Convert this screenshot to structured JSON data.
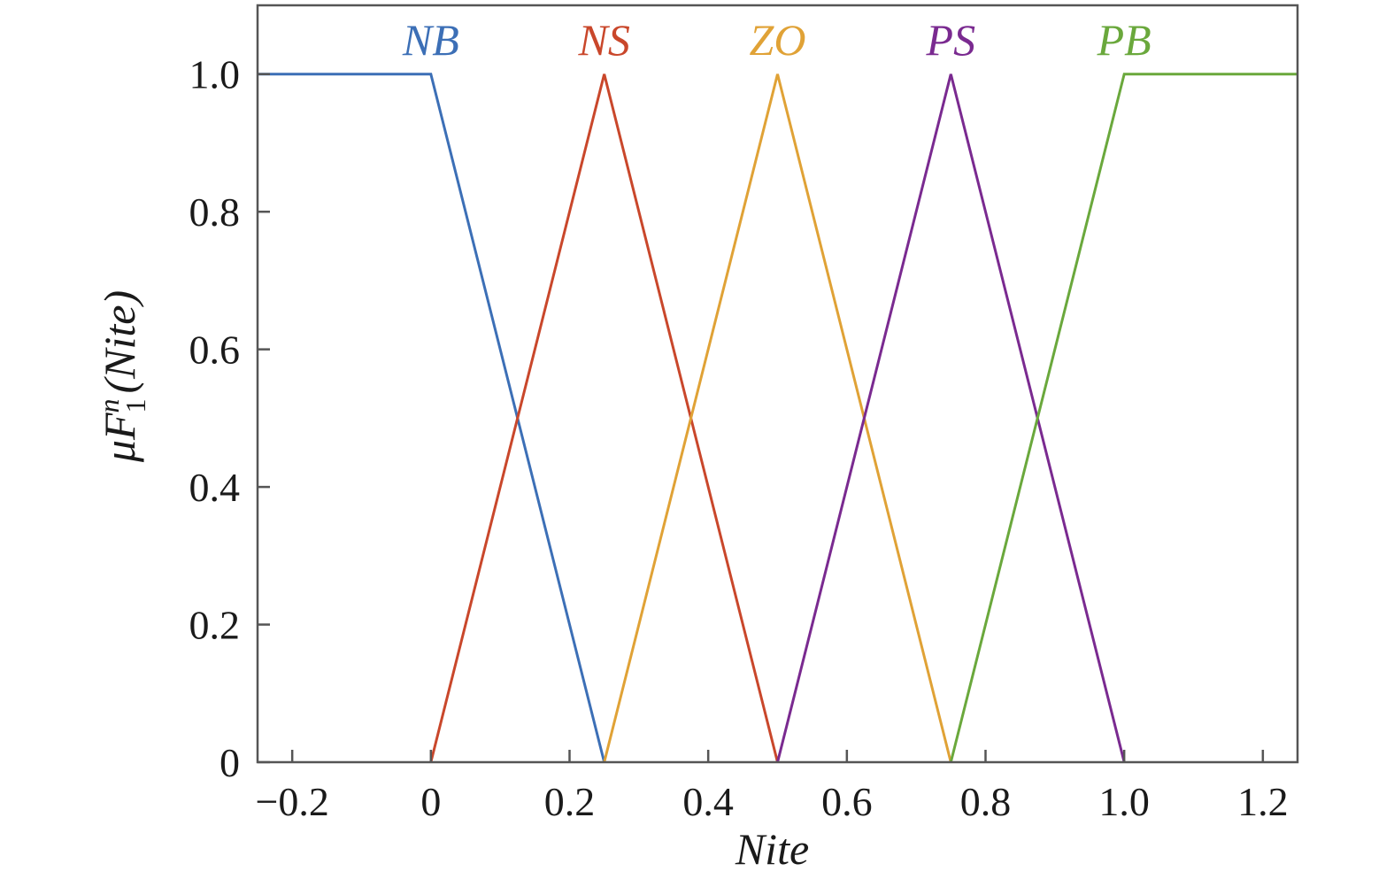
{
  "chart_data": {
    "type": "line",
    "title": "",
    "xlabel": "Nite",
    "ylabel": {
      "mu": "μ",
      "base": "F",
      "sub": "1",
      "sup": "n",
      "arg": "(Nite)"
    },
    "xlim": [
      -0.25,
      1.25
    ],
    "ylim": [
      0,
      1.1
    ],
    "x_ticks": [
      {
        "value": -0.2,
        "label": "−0.2"
      },
      {
        "value": 0,
        "label": "0"
      },
      {
        "value": 0.2,
        "label": "0.2"
      },
      {
        "value": 0.4,
        "label": "0.4"
      },
      {
        "value": 0.6,
        "label": "0.6"
      },
      {
        "value": 0.8,
        "label": "0.8"
      },
      {
        "value": 1.0,
        "label": "1.0"
      },
      {
        "value": 1.2,
        "label": "1.2"
      }
    ],
    "y_ticks": [
      {
        "value": 0,
        "label": "0"
      },
      {
        "value": 0.2,
        "label": "0.2"
      },
      {
        "value": 0.4,
        "label": "0.4"
      },
      {
        "value": 0.6,
        "label": "0.6"
      },
      {
        "value": 0.8,
        "label": "0.8"
      },
      {
        "value": 1.0,
        "label": "1.0"
      }
    ],
    "grid": false,
    "series": [
      {
        "name": "NB",
        "color": "#3c6fb6",
        "label_x": 0,
        "points": [
          [
            -0.25,
            1
          ],
          [
            0,
            1
          ],
          [
            0.25,
            0
          ]
        ]
      },
      {
        "name": "NS",
        "color": "#c9472b",
        "label_x": 0.25,
        "points": [
          [
            0,
            0
          ],
          [
            0.25,
            1
          ],
          [
            0.5,
            0
          ]
        ]
      },
      {
        "name": "ZO",
        "color": "#e0a236",
        "label_x": 0.5,
        "points": [
          [
            0.25,
            0
          ],
          [
            0.5,
            1
          ],
          [
            0.75,
            0
          ]
        ]
      },
      {
        "name": "PS",
        "color": "#7a2a90",
        "label_x": 0.75,
        "points": [
          [
            0.5,
            0
          ],
          [
            0.75,
            1
          ],
          [
            1.0,
            0
          ]
        ]
      },
      {
        "name": "PB",
        "color": "#6aa83c",
        "label_x": 1.0,
        "points": [
          [
            0.75,
            0
          ],
          [
            1.0,
            1
          ],
          [
            1.25,
            1
          ]
        ]
      }
    ]
  }
}
